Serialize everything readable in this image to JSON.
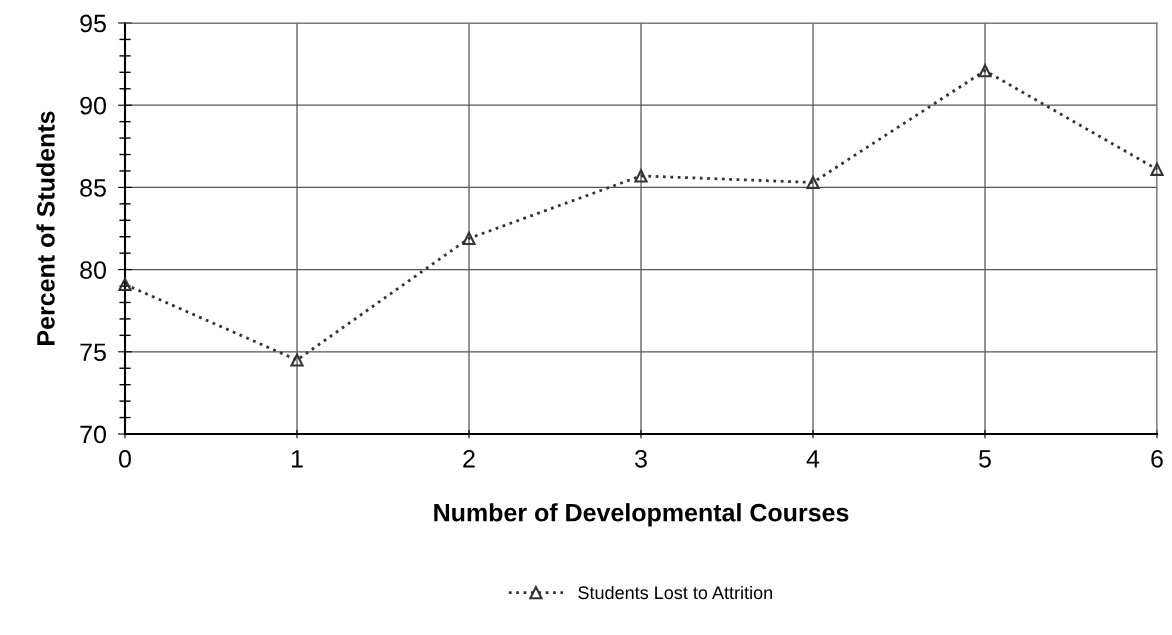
{
  "chart_data": {
    "type": "line",
    "xlabel": "Number of Developmental Courses",
    "ylabel": "Percent of Students",
    "x": [
      0,
      1,
      2,
      3,
      4,
      5,
      6
    ],
    "series": [
      {
        "name": "Students Lost to Attrition",
        "color": "#333333",
        "values": [
          79.1,
          74.5,
          81.9,
          85.7,
          85.3,
          92.1,
          86.1
        ]
      }
    ],
    "xlim": [
      0,
      6
    ],
    "xticks": [
      0,
      1,
      2,
      3,
      4,
      5,
      6
    ],
    "ylim": [
      70,
      95
    ],
    "yticks": [
      70,
      75,
      80,
      85,
      90,
      95
    ],
    "grid": true,
    "legend": "bottom",
    "marker": "triangle",
    "line_style": "dotted"
  }
}
